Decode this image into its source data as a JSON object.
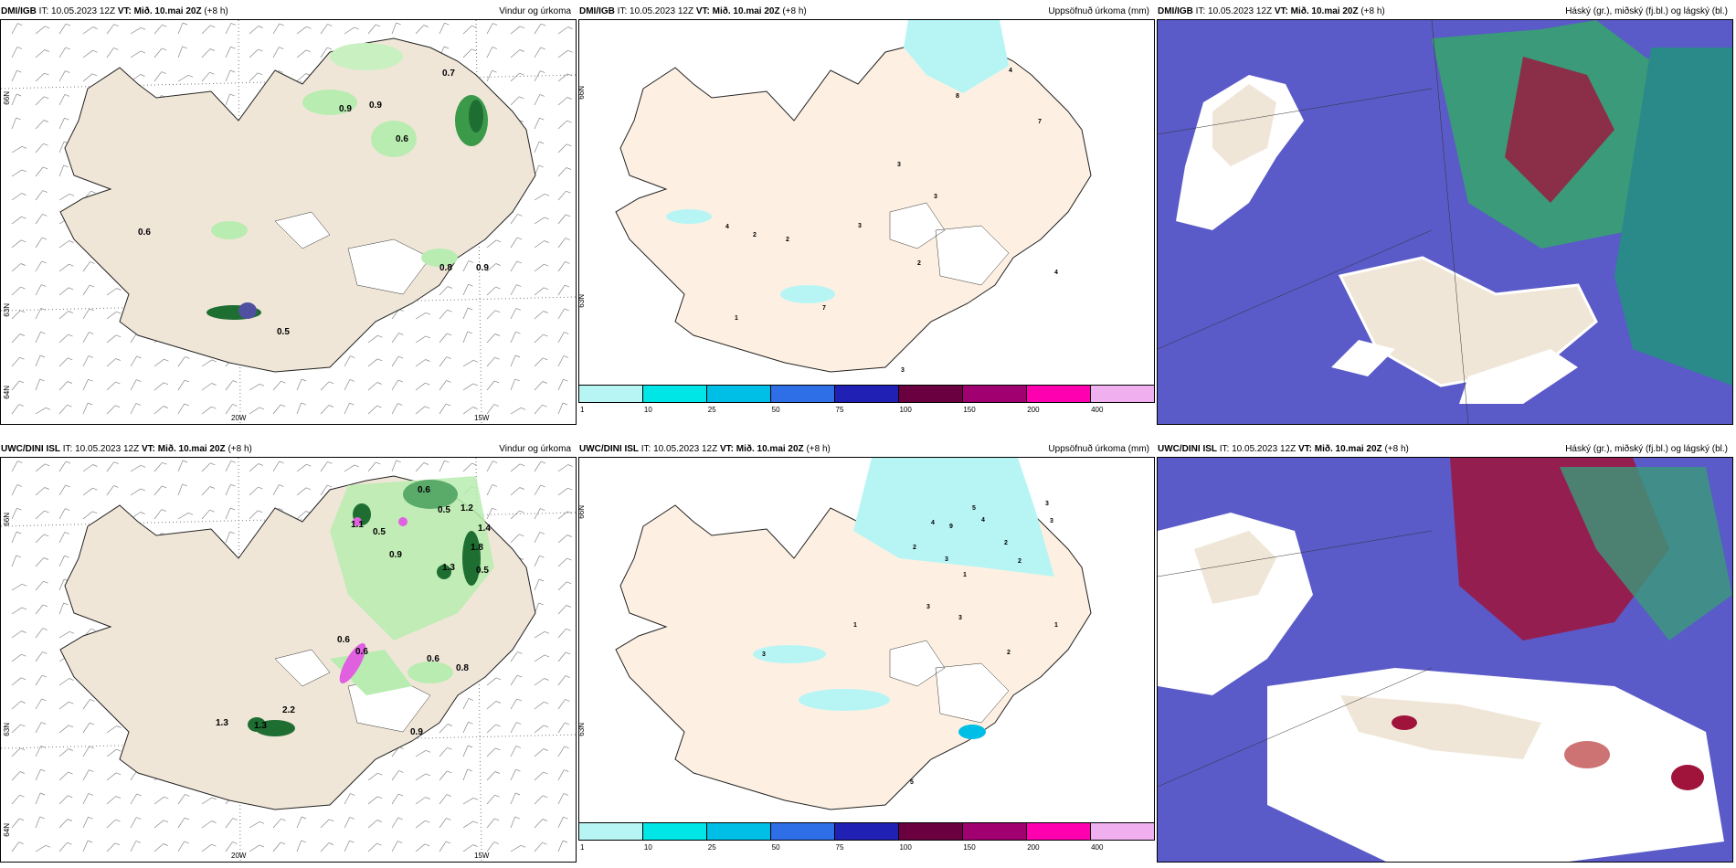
{
  "panels": [
    {
      "model": "DMI/IGB",
      "it": "IT: 10.05.2023 12Z",
      "vt": "VT: Mið. 10.mai 20Z",
      "step": "(+8 h)",
      "title": "Vindur og úrkoma"
    },
    {
      "model": "DMI/IGB",
      "it": "IT: 10.05.2023 12Z",
      "vt": "VT: Mið. 10.mai 20Z",
      "step": "(+8 h)",
      "title": "Uppsöfnuð úrkoma (mm)"
    },
    {
      "model": "DMI/IGB",
      "it": "IT: 10.05.2023 12Z",
      "vt": "VT: Mið. 10.mai 20Z",
      "step": "(+8 h)",
      "title": "Háský (gr.), miðský (fj.bl.) og lágský (bl.)"
    },
    {
      "model": "UWC/DINI ISL",
      "it": "IT: 10.05.2023 12Z",
      "vt": "VT: Mið. 10.mai 20Z",
      "step": "(+8 h)",
      "title": "Vindur og úrkoma"
    },
    {
      "model": "UWC/DINI ISL",
      "it": "IT: 10.05.2023 12Z",
      "vt": "VT: Mið. 10.mai 20Z",
      "step": "(+8 h)",
      "title": "Uppsöfnuð úrkoma (mm)"
    },
    {
      "model": "UWC/DINI ISL",
      "it": "IT: 10.05.2023 12Z",
      "vt": "VT: Mið. 10.mai 20Z",
      "step": "(+8 h)",
      "title": "Háský (gr.), miðský (fj.bl.) og lágský (bl.)"
    }
  ],
  "axes": {
    "lon_a": "20W",
    "lon_b": "15W",
    "lat_a": "66N",
    "lat_b": "64N",
    "lat_c": "63N",
    "lat_d": "65N"
  },
  "colorbar": {
    "labels": [
      "1",
      "10",
      "25",
      "50",
      "75",
      "100",
      "150",
      "200",
      "400"
    ],
    "colors": [
      "#b7f5f5",
      "#00e6e6",
      "#00bfe6",
      "#2e6ee6",
      "#2020b4",
      "#6a0040",
      "#a00070",
      "#ff00b0",
      "#f0b0f0"
    ]
  },
  "dmi_wind_values": [
    "0.7",
    "0.9",
    "0.9",
    "0.6",
    "0.6",
    "0.8",
    "0.9",
    "0.5"
  ],
  "dmi_precip_values": [
    "4",
    "8",
    "7",
    "3",
    "3",
    "4",
    "2",
    "2",
    "3",
    "2",
    "4",
    "1",
    "7",
    "3"
  ],
  "uwc_wind_values": [
    "0.6",
    "0.5",
    "1.2",
    "1.1",
    "0.5",
    "1.4",
    "0.9",
    "1.8",
    "1.3",
    "0.5",
    "0.6",
    "0.6",
    "0.6",
    "0.8",
    "1.3",
    "1.3",
    "2.2",
    "0.9"
  ],
  "uwc_precip_values": [
    "3",
    "5",
    "4",
    "9",
    "4",
    "3",
    "2",
    "2",
    "2",
    "3",
    "1",
    "3",
    "3",
    "1",
    "1",
    "2",
    "3",
    "5"
  ],
  "colors": {
    "land": "#f0e6d8",
    "sea_cloud": "#5a5ac8",
    "green_light": "#b8ecb0",
    "green_dark": "#1e6e32",
    "red_cloud": "#a0143c"
  }
}
